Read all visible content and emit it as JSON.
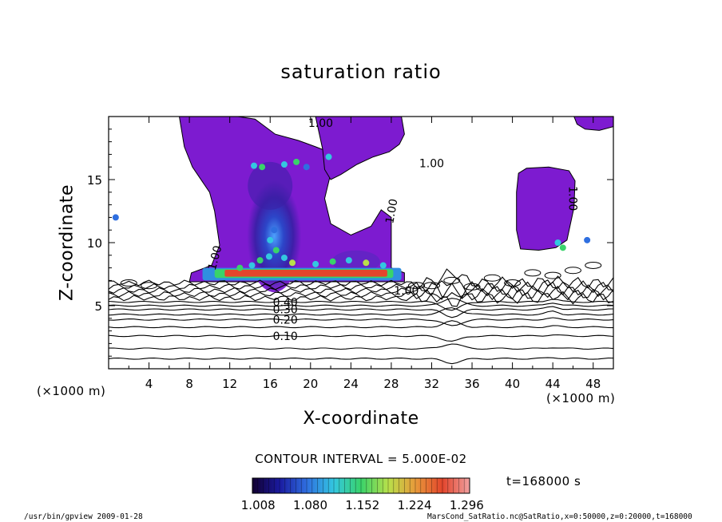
{
  "chart_data": {
    "type": "heatmap",
    "title": "saturation ratio",
    "xlabel": "X-coordinate",
    "ylabel": "Z-coordinate",
    "x_unit": "(×1000 m)",
    "y_unit": "(×1000 m)",
    "xlim": [
      0,
      50
    ],
    "ylim": [
      0,
      20
    ],
    "x_ticks": [
      4,
      8,
      12,
      16,
      20,
      24,
      28,
      32,
      36,
      40,
      44,
      48
    ],
    "y_ticks": [
      5,
      10,
      15
    ],
    "contour_interval_text": "CONTOUR INTERVAL = 5.000E-02",
    "contour_labels": [
      {
        "text": "0.10",
        "x": 17.5,
        "z": 2.6
      },
      {
        "text": "0.20",
        "x": 17.5,
        "z": 3.9
      },
      {
        "text": "0.30",
        "x": 17.5,
        "z": 4.7
      },
      {
        "text": "0.40",
        "x": 17.5,
        "z": 5.3
      },
      {
        "text": "1.00",
        "x": 10.5,
        "z": 8.8
      },
      {
        "text": "1.00",
        "x": 21.0,
        "z": 19.5
      },
      {
        "text": "1.00",
        "x": 32.0,
        "z": 16.3
      },
      {
        "text": "1.00",
        "x": 28.0,
        "z": 12.5
      },
      {
        "text": "1.00",
        "x": 46.0,
        "z": 13.5
      },
      {
        "text": "1.00",
        "x": 29.5,
        "z": 6.2
      }
    ],
    "colorbar": {
      "ticks": [
        "1.008",
        "1.080",
        "1.152",
        "1.224",
        "1.296"
      ],
      "range": [
        1.0,
        1.3
      ]
    },
    "time_label": "t=168000 s",
    "colors": {
      "supersat": "#7d1bd0",
      "supersat_deep": "#3a1fa6",
      "high": "#e3452c"
    }
  },
  "footer": {
    "left": "/usr/bin/gpview  2009-01-28",
    "right": "MarsCond_SatRatio.nc@SatRatio,x=0:50000,z=0:20000,t=168000"
  }
}
